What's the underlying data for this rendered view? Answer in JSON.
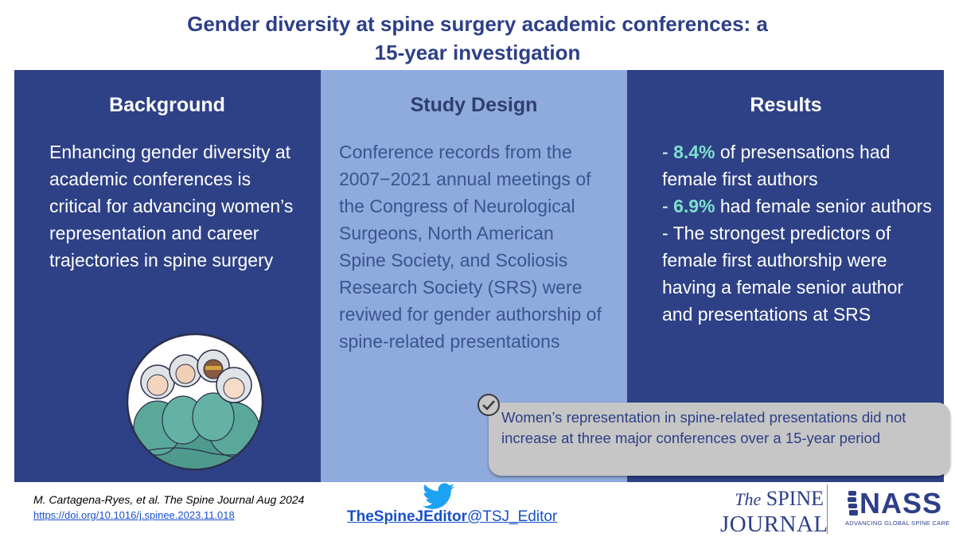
{
  "title": {
    "line1": "Gender diversity at spine surgery academic conferences: a",
    "line2": "15-year investigation"
  },
  "background": {
    "heading": "Background",
    "text": "Enhancing gender diversity at academic conferences is critical for advancing women’s representation and career trajectories in spine surgery"
  },
  "study_design": {
    "heading": "Study Design",
    "text": "Conference records from the 2007−2021 annual meetings of the Congress of Neurological Surgeons, North American Spine Society, and Scoliosis Research Society (SRS) were reviwed for gender authorship of spine-related presentations"
  },
  "results": {
    "heading": "Results",
    "r1_prefix": "- ",
    "r1_value": "8.4%",
    "r1_suffix": " of presensations had female first authors",
    "r2_prefix": "- ",
    "r2_value": "6.9%",
    "r2_suffix": " had female senior authors",
    "r3": "- The strongest predictors of female first authorship were having a female senior author and presentations at SRS"
  },
  "conclusion": {
    "text": "Women’s representation in spine-related presentations did not increase at three major conferences over a 15-year period"
  },
  "footer": {
    "citation": "M. Cartagena-Ryes, et al. The Spine Journal Aug 2024",
    "doi": "https://doi.org/10.1016/j.spinee.2023.11.018",
    "handle_bold": "TheSpineJEditor",
    "handle_rest": "@TSJ_Editor",
    "journal_the": "The",
    "journal_spine": "SPINE",
    "journal_word": "JOURNAL",
    "nass_name": "NASS",
    "nass_tagline": "ADVANCING GLOBAL SPINE CARE"
  },
  "colors": {
    "navy_panel": "#2e4186",
    "light_blue_panel": "#8faadc",
    "highlight": "#7fe0cf",
    "title_blue": "#2e3f88",
    "callout_gray": "#c6c6c6"
  },
  "icons": [
    "check-circle-icon",
    "twitter-bird-icon",
    "surgeons-illustration",
    "nass-spine-logo-icon"
  ]
}
